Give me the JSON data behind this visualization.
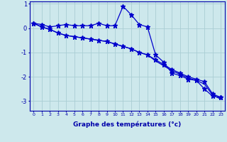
{
  "xlabel": "Graphe des températures (°c)",
  "x": [
    0,
    1,
    2,
    3,
    4,
    5,
    6,
    7,
    8,
    9,
    10,
    11,
    12,
    13,
    14,
    15,
    16,
    17,
    18,
    19,
    20,
    21,
    22,
    23
  ],
  "line1": [
    0.2,
    0.15,
    0.05,
    0.1,
    0.15,
    0.1,
    0.1,
    0.1,
    0.2,
    0.1,
    0.1,
    0.9,
    0.55,
    0.15,
    0.05,
    -1.1,
    -1.4,
    -1.85,
    -1.95,
    -2.1,
    -2.15,
    -2.5,
    -2.8,
    -2.85
  ],
  "line2": [
    0.2,
    0.05,
    -0.05,
    -0.2,
    -0.3,
    -0.35,
    -0.4,
    -0.45,
    -0.5,
    -0.55,
    -0.65,
    -0.75,
    -0.85,
    -1.0,
    -1.1,
    -1.3,
    -1.5,
    -1.7,
    -1.85,
    -2.0,
    -2.1,
    -2.2,
    -2.7,
    -2.85
  ],
  "line3": [
    0.2,
    0.05,
    -0.05,
    -0.2,
    -0.3,
    -0.35,
    -0.4,
    -0.45,
    -0.5,
    -0.55,
    -0.65,
    -0.75,
    -0.85,
    -1.0,
    -1.1,
    -1.35,
    -1.55,
    -1.75,
    -1.9,
    -2.05,
    -2.15,
    -2.3,
    -2.75,
    -2.92
  ],
  "bg_color": "#cde8ec",
  "grid_color": "#aacdd4",
  "line_color": "#0000cc",
  "axis_color": "#0000aa",
  "ylim": [
    -3.4,
    1.1
  ],
  "yticks": [
    1,
    0,
    -1,
    -2,
    -3
  ],
  "xlim": [
    -0.5,
    23.5
  ],
  "marker_size": 3.0,
  "line_width": 0.9
}
